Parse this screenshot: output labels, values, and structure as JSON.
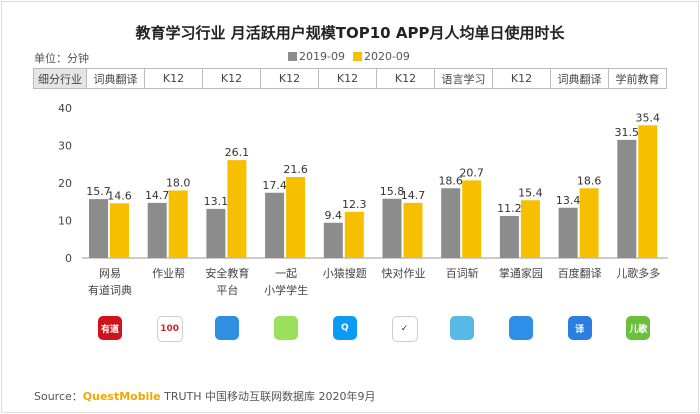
{
  "title": "教育学习行业 月活跃用户规模TOP10 APP月人均单日使用时长",
  "unit": "单位：分钟",
  "segment_header": "细分行业",
  "segments": [
    "词典翻译",
    "K12",
    "K12",
    "K12",
    "K12",
    "K12",
    "语言学习",
    "K12",
    "词典翻译",
    "学前教育"
  ],
  "icons": [
    "youdao-app-icon",
    "zuoyebang-app-icon",
    "anquanjiaoyu-app-icon",
    "17xue-app-icon",
    "xiaoyuan-app-icon",
    "kuaidui-app-icon",
    "baicizhan-app-icon",
    "zhangtong-app-icon",
    "baidu-translate-app-icon",
    "erge-app-icon"
  ],
  "icon_texts": [
    "有道",
    "100",
    "",
    "",
    "Q",
    "✓",
    "",
    "",
    "译",
    "儿歌"
  ],
  "colors": {
    "s2019": "#8c8c8c",
    "s2020": "#f6bf00"
  },
  "source": {
    "prefix": "Source：",
    "brand": "QuestMobile",
    "rest": " TRUTH 中国移动互联网数据库 2020年9月"
  },
  "chart_data": {
    "type": "bar",
    "title": "教育学习行业 月活跃用户规模TOP10 APP月人均单日使用时长",
    "ylabel": "分钟",
    "ylim": [
      0,
      40
    ],
    "yticks": [
      0,
      10,
      20,
      30,
      40
    ],
    "legend_position": "top-center",
    "categories": [
      [
        "网易",
        "有道词典"
      ],
      [
        "作业帮"
      ],
      [
        "安全教育",
        "平台"
      ],
      [
        "一起",
        "小学学生"
      ],
      [
        "小猿搜题"
      ],
      [
        "快对作业"
      ],
      [
        "百词斩"
      ],
      [
        "掌通家园"
      ],
      [
        "百度翻译"
      ],
      [
        "儿歌多多"
      ]
    ],
    "series": [
      {
        "name": "2019-09",
        "values": [
          15.7,
          14.7,
          13.1,
          17.4,
          9.4,
          15.8,
          18.6,
          11.2,
          13.4,
          31.5
        ]
      },
      {
        "name": "2020-09",
        "values": [
          14.6,
          18.0,
          26.1,
          21.6,
          12.3,
          14.7,
          20.7,
          15.4,
          18.6,
          35.4
        ]
      }
    ]
  }
}
